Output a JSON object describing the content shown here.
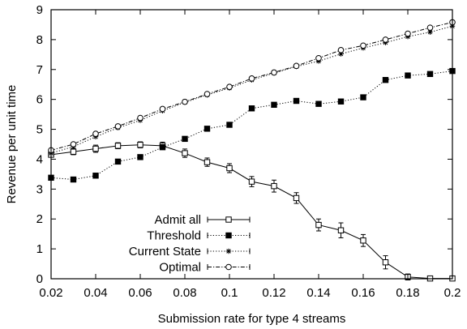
{
  "chart_data": {
    "type": "line",
    "title": "",
    "xlabel": "Submission rate for type 4 streams",
    "ylabel": "Revenue per unit time",
    "xlim": [
      0.02,
      0.2
    ],
    "ylim": [
      0,
      9
    ],
    "xticks": [
      "0.02",
      "0.04",
      "0.06",
      "0.08",
      "0.1",
      "0.12",
      "0.14",
      "0.16",
      "0.18",
      "0.2"
    ],
    "yticks": [
      "0",
      "1",
      "2",
      "3",
      "4",
      "5",
      "6",
      "7",
      "8",
      "9"
    ],
    "grid": false,
    "legend_position": "bottom-center",
    "x": [
      0.02,
      0.03,
      0.04,
      0.05,
      0.06,
      0.07,
      0.08,
      0.09,
      0.1,
      0.11,
      0.12,
      0.13,
      0.14,
      0.15,
      0.16,
      0.17,
      0.18,
      0.19,
      0.2
    ],
    "series": [
      {
        "name": "Admit all",
        "marker": "open-square",
        "line": "solid",
        "values": [
          4.15,
          4.25,
          4.35,
          4.45,
          4.48,
          4.45,
          4.2,
          3.9,
          3.7,
          3.25,
          3.1,
          2.7,
          1.8,
          1.62,
          1.28,
          0.55,
          0.06,
          0.01,
          0.01
        ],
        "error": [
          0.08,
          0.1,
          0.12,
          0.1,
          0.1,
          0.12,
          0.14,
          0.14,
          0.15,
          0.17,
          0.2,
          0.18,
          0.2,
          0.25,
          0.2,
          0.22,
          0.1,
          0.03,
          0.02
        ]
      },
      {
        "name": "Threshold",
        "marker": "filled-square",
        "line": "dotted",
        "values": [
          3.38,
          3.32,
          3.45,
          3.92,
          4.07,
          4.4,
          4.68,
          5.02,
          5.15,
          5.7,
          5.82,
          5.95,
          5.85,
          5.93,
          6.07,
          6.65,
          6.8,
          6.85,
          6.95
        ]
      },
      {
        "name": "Current State",
        "marker": "star",
        "line": "dotted",
        "values": [
          4.2,
          4.42,
          4.75,
          5.05,
          5.3,
          5.62,
          5.9,
          6.15,
          6.38,
          6.65,
          6.88,
          7.1,
          7.28,
          7.52,
          7.72,
          7.9,
          8.1,
          8.25,
          8.45
        ]
      },
      {
        "name": "Optimal",
        "marker": "open-circle",
        "line": "dash-dot",
        "values": [
          4.3,
          4.5,
          4.85,
          5.1,
          5.38,
          5.68,
          5.92,
          6.18,
          6.42,
          6.7,
          6.9,
          7.12,
          7.38,
          7.65,
          7.8,
          8.0,
          8.2,
          8.4,
          8.58
        ]
      }
    ]
  }
}
